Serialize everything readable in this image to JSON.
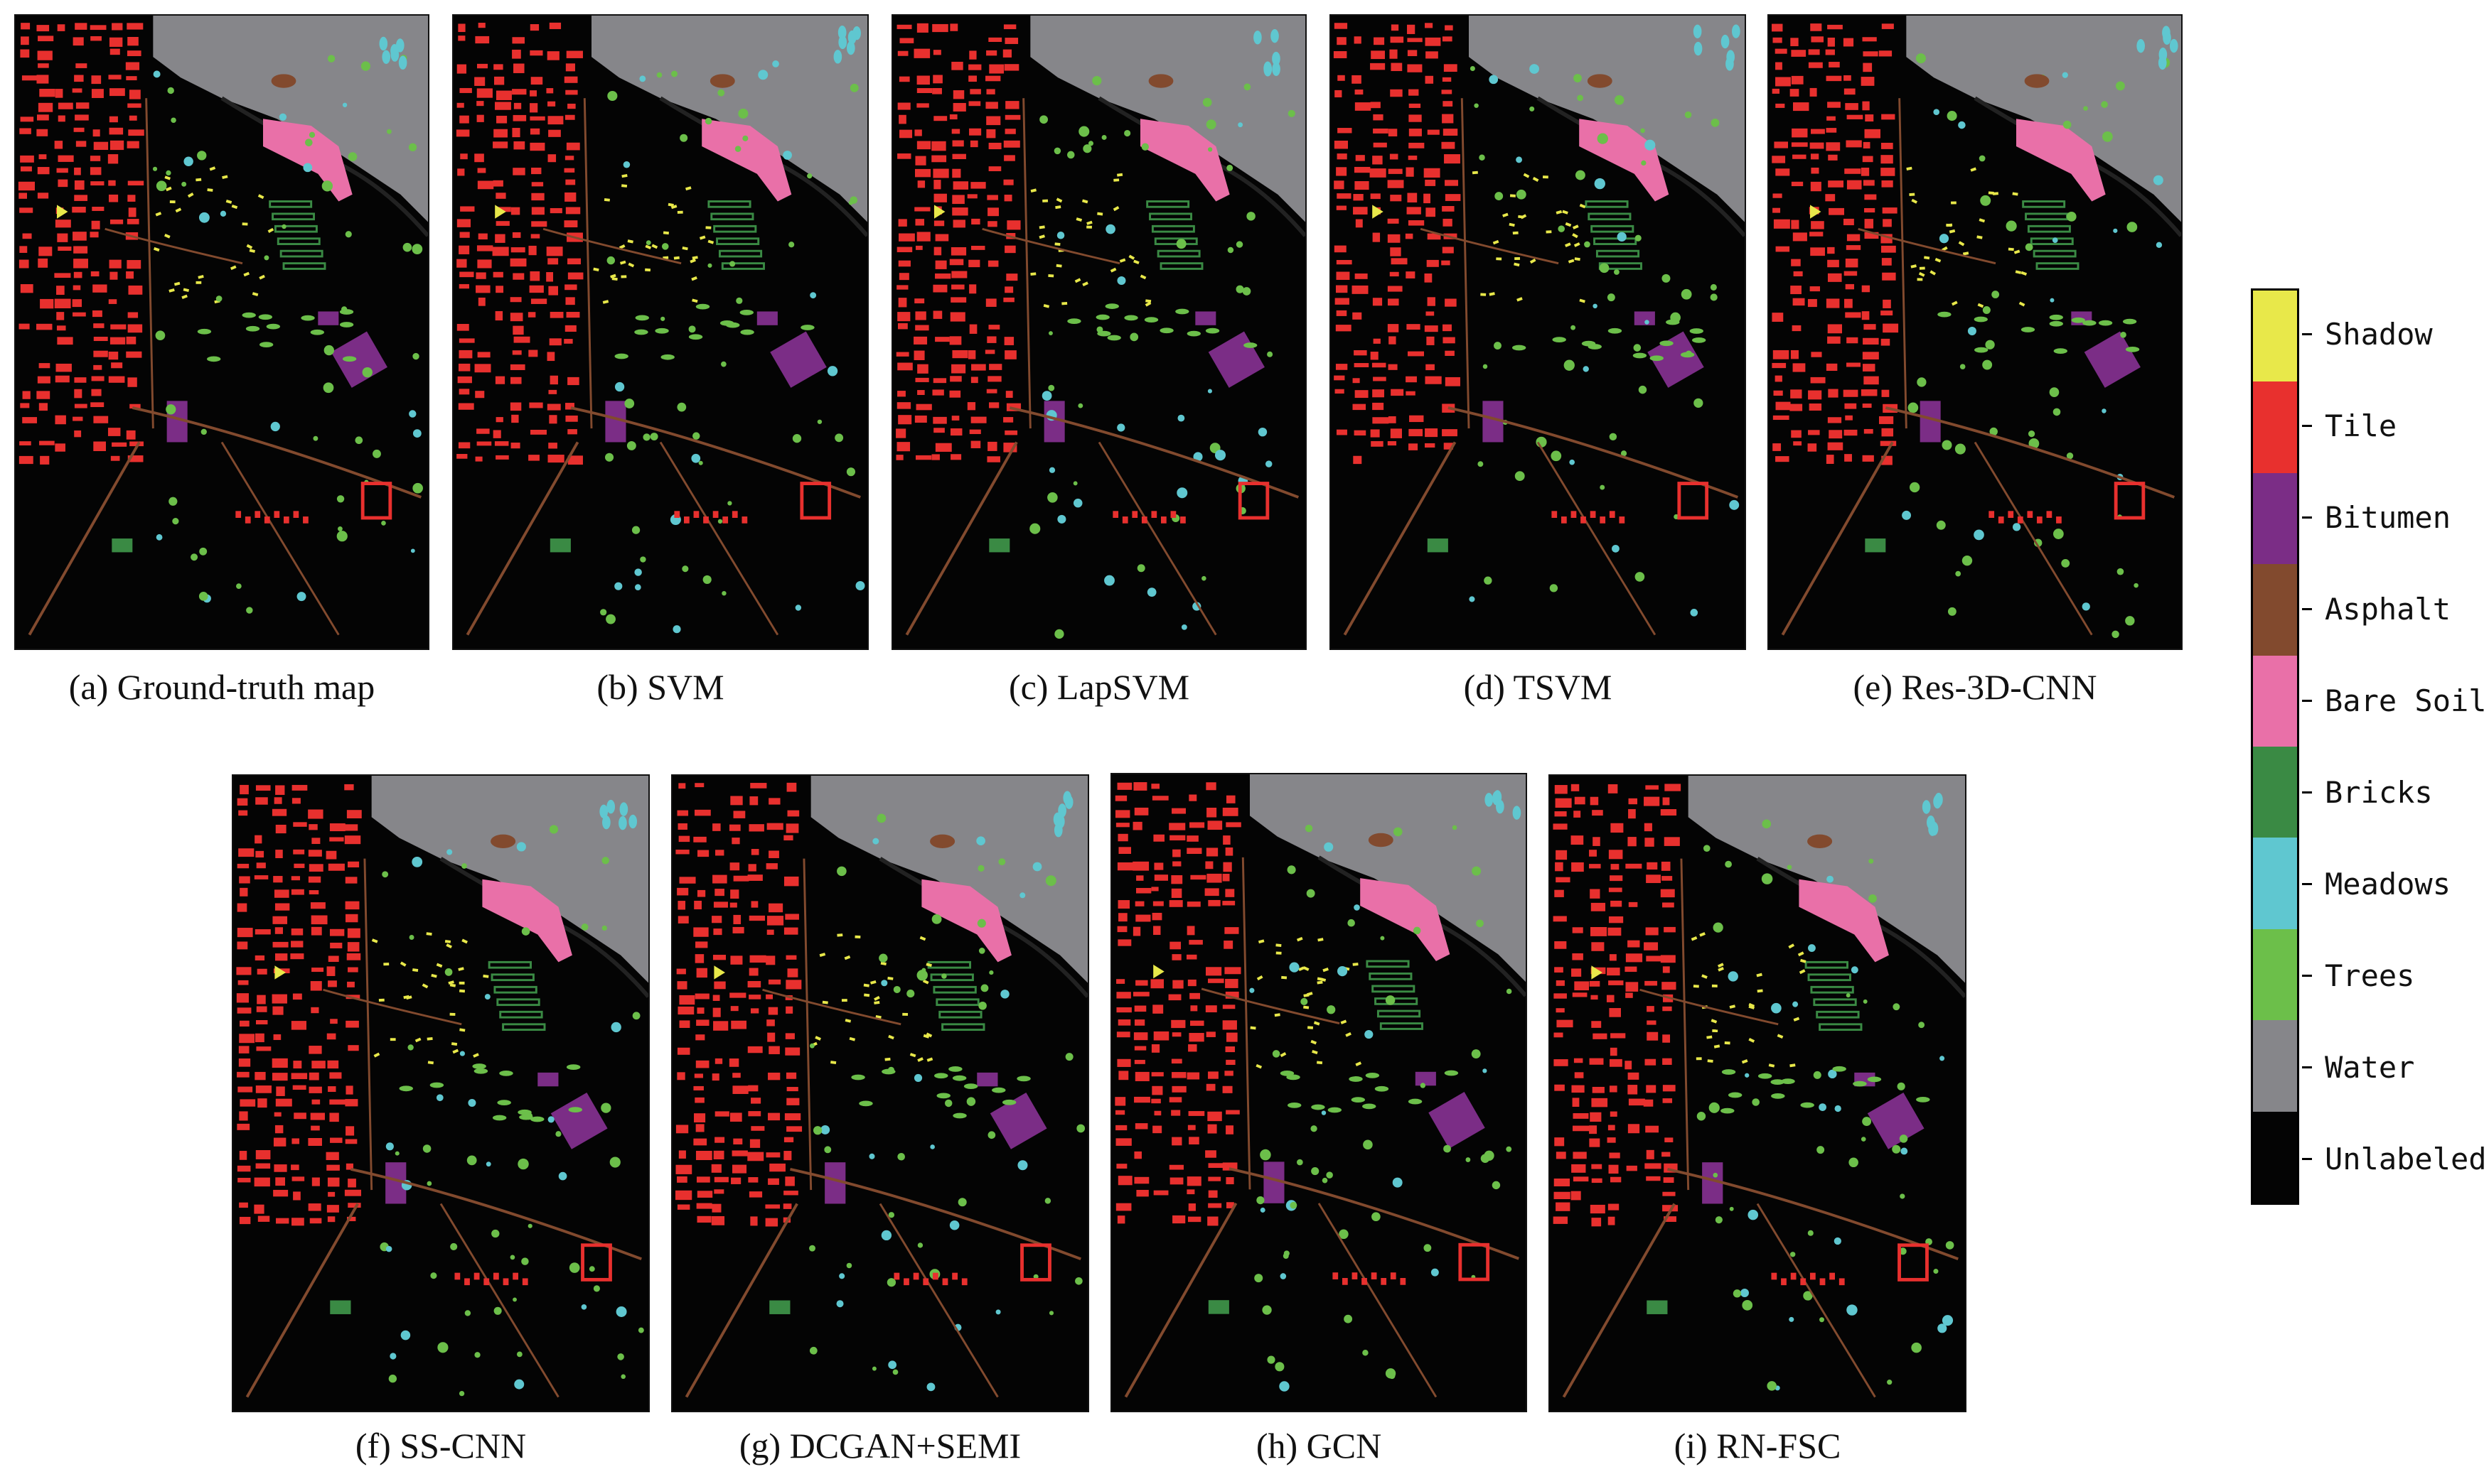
{
  "panels": [
    {
      "id": "a",
      "caption": "(a) Ground-truth map"
    },
    {
      "id": "b",
      "caption": "(b)  SVM"
    },
    {
      "id": "c",
      "caption": "(c) LapSVM"
    },
    {
      "id": "d",
      "caption": "(d) TSVM"
    },
    {
      "id": "e",
      "caption": "(e) Res-3D-CNN"
    },
    {
      "id": "f",
      "caption": "(f) SS-CNN"
    },
    {
      "id": "g",
      "caption": "(g)  DCGAN+SEMI"
    },
    {
      "id": "h",
      "caption": "(h) GCN"
    },
    {
      "id": "i",
      "caption": "(i) RN-FSC"
    }
  ],
  "legend": [
    {
      "label": "Shadow",
      "color": "#e8e84a"
    },
    {
      "label": "Tile",
      "color": "#e8302e"
    },
    {
      "label": "Bitumen",
      "color": "#7b2d86"
    },
    {
      "label": "Asphalt",
      "color": "#824a2e"
    },
    {
      "label": "Bare Soil",
      "color": "#e970a8"
    },
    {
      "label": "Bricks",
      "color": "#3a8a44"
    },
    {
      "label": "Meadows",
      "color": "#5fc7d0"
    },
    {
      "label": "Trees",
      "color": "#6cbf4a"
    },
    {
      "label": "Water",
      "color": "#86868a"
    },
    {
      "label": "Unlabeled",
      "color": "#040404"
    }
  ]
}
